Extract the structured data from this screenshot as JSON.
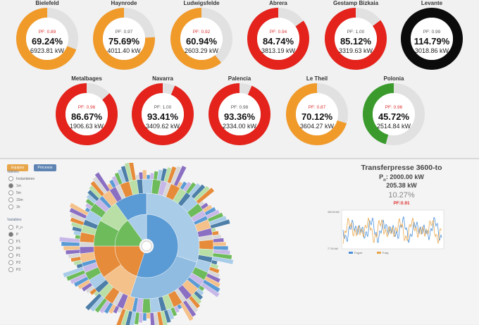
{
  "gauges": [
    {
      "name": "Bielefeld",
      "pf": "0.89",
      "pf_warn": true,
      "pct": "69.24%",
      "kw": "6923.81 kW",
      "fraction": 0.6924,
      "color": "#f09a2a"
    },
    {
      "name": "Haynrode",
      "pf": "0.97",
      "pf_warn": false,
      "pct": "75.69%",
      "kw": "4011.40 kW",
      "fraction": 0.7569,
      "color": "#f09a2a"
    },
    {
      "name": "Ludwigsfelde",
      "pf": "0.92",
      "pf_warn": true,
      "pct": "60.94%",
      "kw": "2603.29 kW",
      "fraction": 0.6094,
      "color": "#f09a2a"
    },
    {
      "name": "Abrera",
      "pf": "0.94",
      "pf_warn": true,
      "pct": "84.74%",
      "kw": "3813.19 kW",
      "fraction": 0.8474,
      "color": "#e3231c"
    },
    {
      "name": "Gestamp Bizkaia",
      "pf": "1.00",
      "pf_warn": false,
      "pct": "85.12%",
      "kw": "3319.63 kW",
      "fraction": 0.8512,
      "color": "#e3231c"
    },
    {
      "name": "Levante",
      "pf": "0.99",
      "pf_warn": false,
      "pct": "114.79%",
      "kw": "3018.86 kW",
      "fraction": 1.0,
      "color": "#0b0b0b"
    },
    {
      "name": "Metalbages",
      "pf": "0.96",
      "pf_warn": true,
      "pct": "86.67%",
      "kw": "1906.63 kW",
      "fraction": 0.8667,
      "color": "#e3231c"
    },
    {
      "name": "Navarra",
      "pf": "1.00",
      "pf_warn": false,
      "pct": "93.41%",
      "kw": "3409.62 kW",
      "fraction": 0.9341,
      "color": "#e3231c"
    },
    {
      "name": "Palencia",
      "pf": "0.98",
      "pf_warn": false,
      "pct": "93.36%",
      "kw": "2334.00 kW",
      "fraction": 0.9336,
      "color": "#e3231c"
    },
    {
      "name": "Le Theil",
      "pf": "0.87",
      "pf_warn": true,
      "pct": "70.12%",
      "kw": "3604.27 kW",
      "fraction": 0.7012,
      "color": "#f09a2a"
    },
    {
      "name": "Polonia",
      "pf": "0.96",
      "pf_warn": true,
      "pct": "45.72%",
      "kw": "2514.84 kW",
      "fraction": 0.4572,
      "color": "#3a9a2c"
    }
  ],
  "pf_prefix": "PF: ",
  "tabs": {
    "active": "Equipos",
    "other": "Procesos"
  },
  "values_panel": {
    "title": "Valores",
    "options": [
      "Instantáneo",
      "1m",
      "5m",
      "15m",
      "1h"
    ],
    "selected": 1
  },
  "variables_panel": {
    "title": "Variables",
    "options": [
      "P_n",
      "P",
      "P1",
      "PF",
      "P1",
      "P2",
      "P3"
    ],
    "selected": 1
  },
  "detail": {
    "title": "Transferpresse 3600-to",
    "pn_label": "P",
    "pn_sub": "n",
    "pn_value": ": 2000.00 kW",
    "power": "205.38 kW",
    "percent": "10.27%",
    "pf": "PF:0.91",
    "mini_chart": {
      "ymax": "400.00 kW",
      "ymin": "77.00 kW",
      "legend": [
        "P.hyper",
        "P.day"
      ],
      "colors": [
        "#4a90d9",
        "#e8a64b"
      ]
    }
  },
  "sunburst_colors": [
    "#5b9bd5",
    "#a9cce8",
    "#e58b3a",
    "#f4c18b",
    "#6ebb5c",
    "#b9dfa7",
    "#8a6fc2",
    "#c8b8e8",
    "#4d7fa8",
    "#d8d8d8"
  ]
}
